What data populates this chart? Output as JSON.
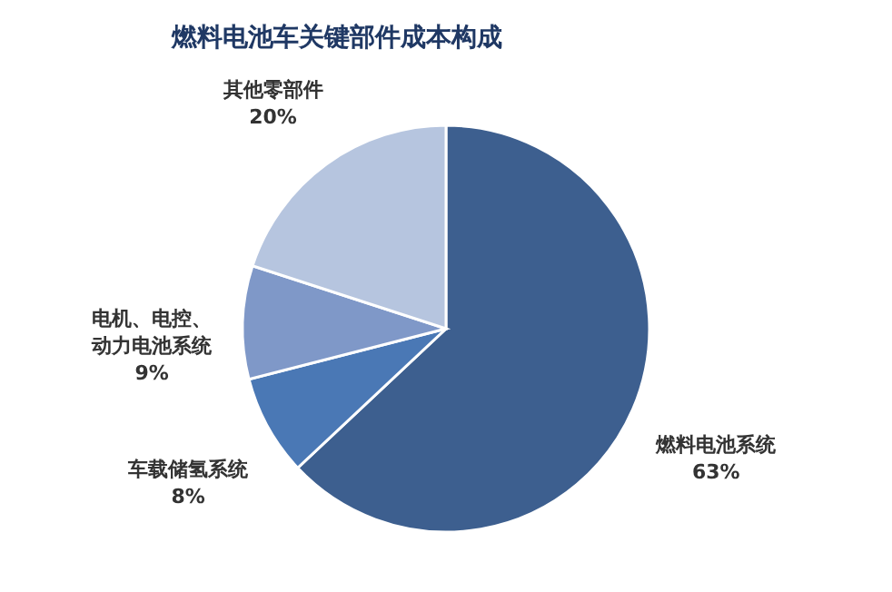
{
  "chart_data": {
    "type": "pie",
    "title": "燃料电池车关键部件成本构成",
    "categories": [
      "燃料电池系统",
      "车载储氢系统",
      "电机、电控、动力电池系统",
      "其他零部件"
    ],
    "values": [
      63,
      8,
      9,
      20
    ],
    "value_labels": [
      "63%",
      "8%",
      "9%",
      "20%"
    ],
    "colors": [
      "#3d5f8f",
      "#4a78b5",
      "#7f98c8",
      "#b6c5df"
    ],
    "legend": false
  }
}
